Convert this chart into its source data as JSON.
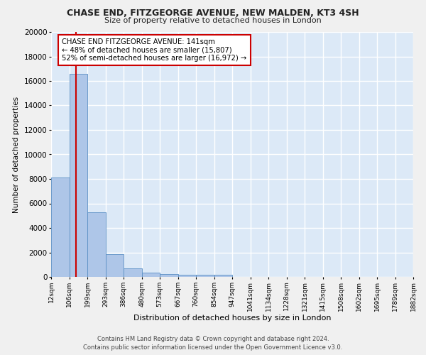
{
  "title": "CHASE END, FITZGEORGE AVENUE, NEW MALDEN, KT3 4SH",
  "subtitle": "Size of property relative to detached houses in London",
  "xlabel": "Distribution of detached houses by size in London",
  "ylabel": "Number of detached properties",
  "annotation_line1": "CHASE END FITZGEORGE AVENUE: 141sqm",
  "annotation_line2": "← 48% of detached houses are smaller (15,807)",
  "annotation_line3": "52% of semi-detached houses are larger (16,972) →",
  "footer_line1": "Contains HM Land Registry data © Crown copyright and database right 2024.",
  "footer_line2": "Contains public sector information licensed under the Open Government Licence v3.0.",
  "bar_edges": [
    12,
    106,
    199,
    293,
    386,
    480,
    573,
    667,
    760,
    854,
    947,
    1041,
    1134,
    1228,
    1321,
    1415,
    1508,
    1602,
    1695,
    1789,
    1882
  ],
  "bar_heights": [
    8100,
    16600,
    5300,
    1850,
    700,
    320,
    230,
    180,
    175,
    150,
    0,
    0,
    0,
    0,
    0,
    0,
    0,
    0,
    0,
    0
  ],
  "bar_color": "#aec6e8",
  "bar_edge_color": "#5a8fc4",
  "red_line_x": 141,
  "xlim_left": 12,
  "xlim_right": 1882,
  "ylim_top": 20000,
  "tick_labels": [
    "12sqm",
    "106sqm",
    "199sqm",
    "293sqm",
    "386sqm",
    "480sqm",
    "573sqm",
    "667sqm",
    "760sqm",
    "854sqm",
    "947sqm",
    "1041sqm",
    "1134sqm",
    "1228sqm",
    "1321sqm",
    "1415sqm",
    "1508sqm",
    "1602sqm",
    "1695sqm",
    "1789sqm",
    "1882sqm"
  ],
  "tick_positions": [
    12,
    106,
    199,
    293,
    386,
    480,
    573,
    667,
    760,
    854,
    947,
    1041,
    1134,
    1228,
    1321,
    1415,
    1508,
    1602,
    1695,
    1789,
    1882
  ],
  "plot_bg_color": "#dce9f7",
  "fig_bg_color": "#f0f0f0",
  "grid_color": "#ffffff",
  "annotation_box_color": "#ffffff",
  "annotation_border_color": "#cc0000",
  "red_line_color": "#cc0000",
  "yticks": [
    0,
    2000,
    4000,
    6000,
    8000,
    10000,
    12000,
    14000,
    16000,
    18000,
    20000
  ]
}
